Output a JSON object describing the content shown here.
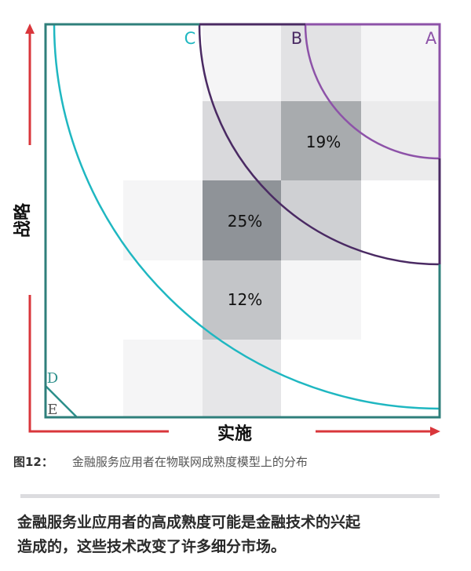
{
  "diagram": {
    "axis_x_label": "实施",
    "axis_y_label": "战略",
    "zone_labels": {
      "A": "A",
      "B": "B",
      "C": "C",
      "D": "D",
      "E": "E"
    },
    "cell_values": {
      "top_right": "19%",
      "center": "25%",
      "lower_center": "12%"
    },
    "colors": {
      "frame": "#2f7f7b",
      "arrow": "#d9363b",
      "zone_a": "#8d52a8",
      "zone_b": "#4a2a63",
      "zone_c": "#1fb7c1",
      "zone_d": "#2c8f8a",
      "zone_e": "#555555"
    }
  },
  "caption": {
    "number": "图12：",
    "text": "金融服务应用者在物联网成熟度模型上的分布"
  },
  "takeaway": {
    "line1": "金融服务业应用者的高成熟度可能是金融技术的兴起",
    "line2": "造成的，这些技术改变了许多细分市场。"
  }
}
